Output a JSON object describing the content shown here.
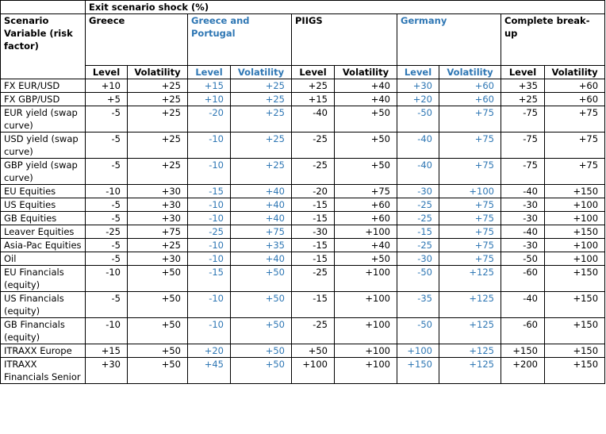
{
  "table": {
    "title": "Exit scenario shock (%)",
    "row_header": "Scenario Variable (risk factor)",
    "scenarios": [
      "Greece",
      "Greece and Portugal",
      "PIIGS",
      "Germany",
      "Complete break-up"
    ],
    "subheaders": [
      "Level",
      "Volatility",
      "Level",
      "Volatility",
      "Level",
      "Volatility",
      "Level",
      "Volatility",
      "Level",
      "Volatility"
    ],
    "rows": [
      {
        "label": "FX EUR/USD",
        "values": [
          "+10",
          "+25",
          "+15",
          "+25",
          "+25",
          "+40",
          "+30",
          "+60",
          "+35",
          "+60"
        ]
      },
      {
        "label": "FX GBP/USD",
        "values": [
          "+5",
          "+25",
          "+10",
          "+25",
          "+15",
          "+40",
          "+20",
          "+60",
          "+25",
          "+60"
        ]
      },
      {
        "label": "EUR yield (swap curve)",
        "values": [
          "-5",
          "+25",
          "-20",
          "+25",
          "-40",
          "+50",
          "-50",
          "+75",
          "-75",
          "+75"
        ]
      },
      {
        "label": "USD yield (swap curve)",
        "values": [
          "-5",
          "+25",
          "-10",
          "+25",
          "-25",
          "+50",
          "-40",
          "+75",
          "-75",
          "+75"
        ]
      },
      {
        "label": "GBP yield (swap curve)",
        "values": [
          "-5",
          "+25",
          "-10",
          "+25",
          "-25",
          "+50",
          "-40",
          "+75",
          "-75",
          "+75"
        ]
      },
      {
        "label": "EU Equities",
        "values": [
          "-10",
          "+30",
          "-15",
          "+40",
          "-20",
          "+75",
          "-30",
          "+100",
          "-40",
          "+150"
        ]
      },
      {
        "label": "US Equities",
        "values": [
          "-5",
          "+30",
          "-10",
          "+40",
          "-15",
          "+60",
          "-25",
          "+75",
          "-30",
          "+100"
        ]
      },
      {
        "label": "GB Equities",
        "values": [
          "-5",
          "+30",
          "-10",
          "+40",
          "-15",
          "+60",
          "-25",
          "+75",
          "-30",
          "+100"
        ]
      },
      {
        "label": "Leaver Equities",
        "values": [
          "-25",
          "+75",
          "-25",
          "+75",
          "-30",
          "+100",
          "-15",
          "+75",
          "-40",
          "+150"
        ]
      },
      {
        "label": "Asia-Pac Equities",
        "values": [
          "-5",
          "+25",
          "-10",
          "+35",
          "-15",
          "+40",
          "-25",
          "+75",
          "-30",
          "+100"
        ]
      },
      {
        "label": "Oil",
        "values": [
          "-5",
          "+30",
          "-10",
          "+40",
          "-15",
          "+50",
          "-30",
          "+75",
          "-50",
          "+100"
        ]
      },
      {
        "label": "EU Financials (equity)",
        "values": [
          "-10",
          "+50",
          "-15",
          "+50",
          "-25",
          "+100",
          "-50",
          "+125",
          "-60",
          "+150"
        ]
      },
      {
        "label": "US Financials (equity)",
        "values": [
          "-5",
          "+50",
          "-10",
          "+50",
          "-15",
          "+100",
          "-35",
          "+125",
          "-40",
          "+150"
        ]
      },
      {
        "label": "GB Financials (equity)",
        "values": [
          "-10",
          "+50",
          "-10",
          "+50",
          "-25",
          "+100",
          "-50",
          "+125",
          "-60",
          "+150"
        ]
      },
      {
        "label": "ITRAXX Europe",
        "values": [
          "+15",
          "+50",
          "+20",
          "+50",
          "+50",
          "+100",
          "+100",
          "+125",
          "+150",
          "+150"
        ]
      },
      {
        "label": "ITRAXX Financials Senior",
        "values": [
          "+30",
          "+50",
          "+45",
          "+50",
          "+100",
          "+100",
          "+150",
          "+125",
          "+200",
          "+150"
        ]
      }
    ]
  }
}
